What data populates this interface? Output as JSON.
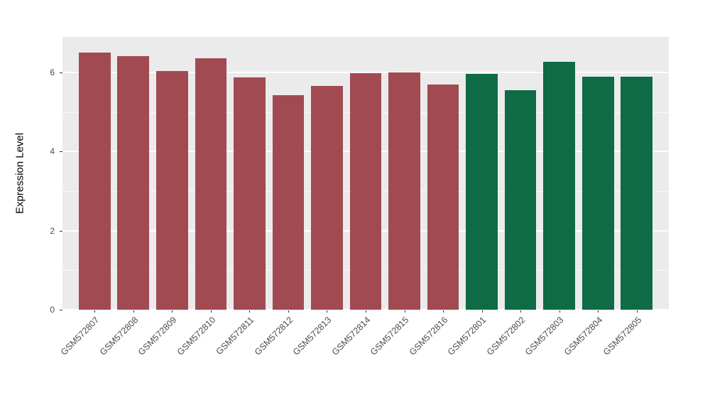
{
  "chart_data": {
    "type": "bar",
    "title": "",
    "xlabel": "",
    "ylabel": "Expression Level",
    "categories": [
      "GSM572807",
      "GSM572808",
      "GSM572809",
      "GSM572810",
      "GSM572811",
      "GSM572812",
      "GSM572813",
      "GSM572814",
      "GSM572815",
      "GSM572816",
      "GSM572801",
      "GSM572802",
      "GSM572803",
      "GSM572804",
      "GSM572805"
    ],
    "values": [
      6.5,
      6.41,
      6.03,
      6.36,
      5.87,
      5.43,
      5.66,
      5.98,
      6.01,
      5.7,
      5.97,
      5.55,
      6.27,
      5.89,
      5.9
    ],
    "bar_colors": [
      "#A24A52",
      "#A24A52",
      "#A24A52",
      "#A24A52",
      "#A24A52",
      "#A24A52",
      "#A24A52",
      "#A24A52",
      "#A24A52",
      "#A24A52",
      "#0E6B45",
      "#0E6B45",
      "#0E6B45",
      "#0E6B45",
      "#0E6B45"
    ],
    "group_colors": {
      "left_group": "#A24A52",
      "right_group": "#0E6B45"
    },
    "ylim": [
      0,
      6.9
    ],
    "yticks": [
      0,
      2,
      4,
      6
    ],
    "minor_gridlines": [
      1,
      3,
      5
    ],
    "grid": true,
    "legend": "none",
    "panel_background": "#EBEBEB",
    "gridline_color": "#FFFFFF",
    "axis_text_color": "#4D4D4D"
  }
}
